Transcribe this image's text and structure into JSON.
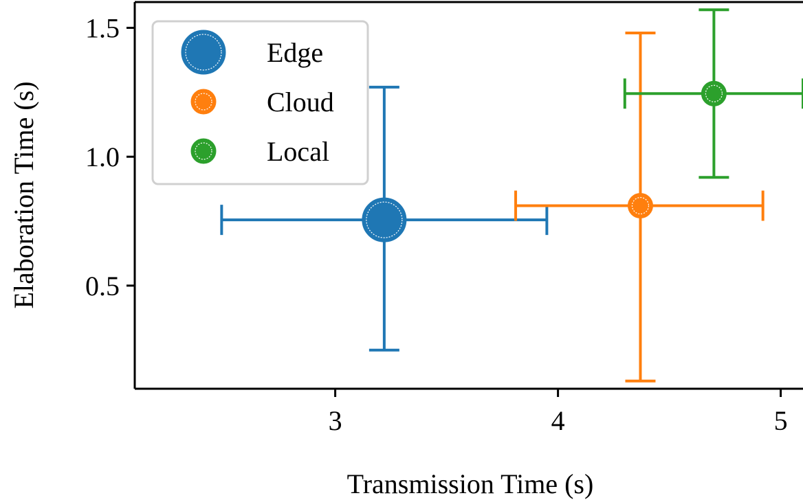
{
  "chart_data": {
    "type": "scatter",
    "xlabel": "Transmission Time (s)",
    "ylabel": "Elaboration Time (s)",
    "xlim": [
      2.1,
      5.1
    ],
    "ylim": [
      0.1,
      1.6
    ],
    "xticks": [
      3,
      4,
      5
    ],
    "yticks": [
      0.5,
      1.0,
      1.5
    ],
    "xtick_labels": [
      "3",
      "4",
      "5"
    ],
    "ytick_labels": [
      "0.5",
      "1.0",
      "1.5"
    ],
    "grid": false,
    "legend_position": "top-left",
    "series": [
      {
        "name": "Edge",
        "color": "#1f77b4",
        "x": 3.22,
        "y": 0.755,
        "xerr": [
          2.49,
          3.95
        ],
        "yerr": [
          0.25,
          1.27
        ],
        "marker_size": "large"
      },
      {
        "name": "Cloud",
        "color": "#ff7f0e",
        "x": 4.37,
        "y": 0.81,
        "xerr": [
          3.81,
          4.92
        ],
        "yerr": [
          0.13,
          1.48
        ],
        "marker_size": "medium"
      },
      {
        "name": "Local",
        "color": "#2ca02c",
        "x": 4.7,
        "y": 1.245,
        "xerr": [
          4.3,
          5.1
        ],
        "yerr": [
          0.92,
          1.57
        ],
        "marker_size": "medium"
      }
    ]
  }
}
